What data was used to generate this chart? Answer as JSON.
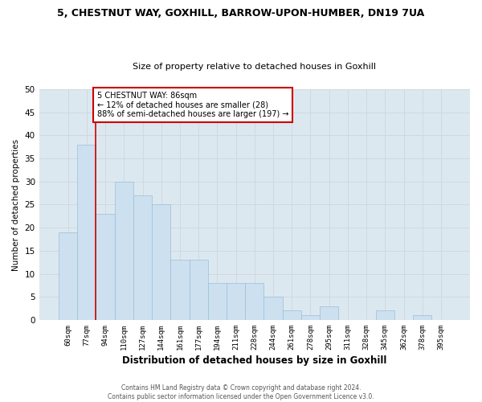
{
  "title": "5, CHESTNUT WAY, GOXHILL, BARROW-UPON-HUMBER, DN19 7UA",
  "subtitle": "Size of property relative to detached houses in Goxhill",
  "xlabel": "Distribution of detached houses by size in Goxhill",
  "ylabel": "Number of detached properties",
  "categories": [
    "60sqm",
    "77sqm",
    "94sqm",
    "110sqm",
    "127sqm",
    "144sqm",
    "161sqm",
    "177sqm",
    "194sqm",
    "211sqm",
    "228sqm",
    "244sqm",
    "261sqm",
    "278sqm",
    "295sqm",
    "311sqm",
    "328sqm",
    "345sqm",
    "362sqm",
    "378sqm",
    "395sqm"
  ],
  "values": [
    19,
    38,
    23,
    30,
    27,
    25,
    13,
    13,
    8,
    8,
    8,
    5,
    2,
    1,
    3,
    0,
    0,
    2,
    0,
    1,
    0
  ],
  "bar_color": "#cce0f0",
  "bar_edge_color": "#9bbfd8",
  "bar_width": 1.0,
  "vline_x_pos": 1.5,
  "vline_color": "#cc0000",
  "annotation_text": "5 CHESTNUT WAY: 86sqm\n← 12% of detached houses are smaller (28)\n88% of semi-detached houses are larger (197) →",
  "annotation_box_color": "#ffffff",
  "annotation_box_edge_color": "#cc0000",
  "ylim": [
    0,
    50
  ],
  "yticks": [
    0,
    5,
    10,
    15,
    20,
    25,
    30,
    35,
    40,
    45,
    50
  ],
  "grid_color": "#d0d8e0",
  "background_color": "#dce8f0",
  "footer": "Contains HM Land Registry data © Crown copyright and database right 2024.\nContains public sector information licensed under the Open Government Licence v3.0."
}
